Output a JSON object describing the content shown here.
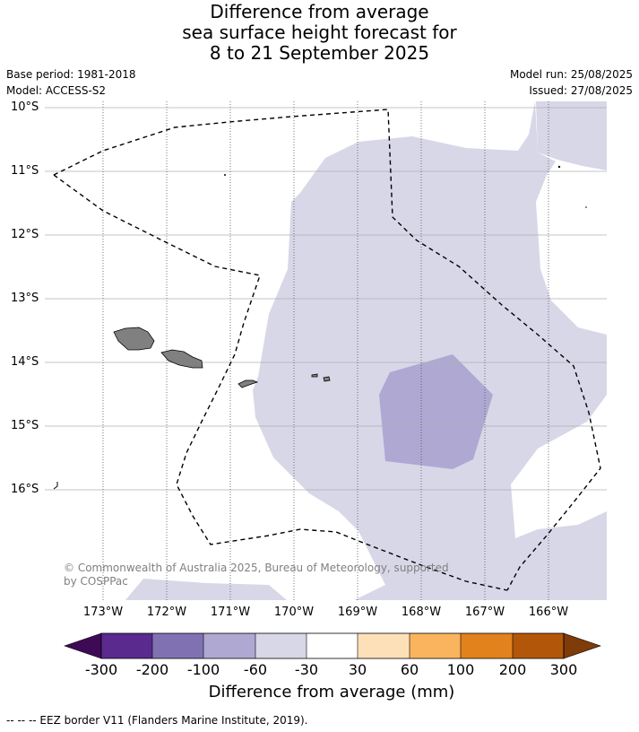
{
  "title": {
    "line1": "Difference from average",
    "line2": "sea surface height forecast for",
    "line3": "8 to 21 September 2025"
  },
  "meta_left": {
    "base_period": "Base period: 1981-2018",
    "model": "Model: ACCESS-S2"
  },
  "meta_right": {
    "model_run": "Model run: 25/08/2025",
    "issued": "Issued: 27/08/2025"
  },
  "lat_labels": [
    "10°S",
    "11°S",
    "12°S",
    "13°S",
    "14°S",
    "15°S",
    "16°S"
  ],
  "lon_labels": [
    "173°W",
    "172°W",
    "171°W",
    "170°W",
    "169°W",
    "168°W",
    "167°W",
    "166°W"
  ],
  "copyright": {
    "line1": "© Commonwealth of Australia 2025, Bureau of Meteorology, supported",
    "line2": "by COSPPac"
  },
  "colorbar": {
    "ticks": [
      "-300",
      "-200",
      "-100",
      "-60",
      "-30",
      "30",
      "60",
      "100",
      "200",
      "300"
    ],
    "colors": [
      "#3f0a55",
      "#5a2a8e",
      "#8072b2",
      "#aea8d2",
      "#d7d7e8",
      "#ffffff",
      "#fde0b7",
      "#f9b45d",
      "#e2821c",
      "#b25709",
      "#7f3b08"
    ],
    "label": "Difference from average (mm)"
  },
  "footnote": "--  --  -- EEZ border V11 (Flanders Marine Institute, 2019).",
  "colors": {
    "light_anomaly": "#d7d7e8",
    "medium_anomaly": "#aea8d2",
    "land": "#808080"
  }
}
